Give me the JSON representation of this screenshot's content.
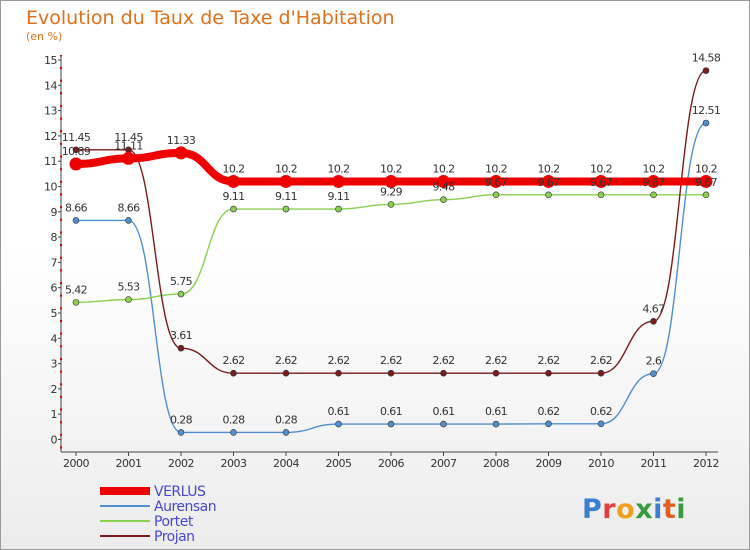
{
  "title": "Evolution du Taux de Taxe d'Habitation",
  "unit": "(en %)",
  "logo_text": "Proxiti",
  "chart_data": {
    "type": "line",
    "title": "Evolution du Taux de Taxe d'Habitation",
    "ylabel": "(en %)",
    "xlabel": "",
    "x": [
      "2000",
      "2001",
      "2002",
      "2003",
      "2004",
      "2005",
      "2006",
      "2007",
      "2008",
      "2009",
      "2010",
      "2011",
      "2012"
    ],
    "ylim": [
      0,
      15
    ],
    "yticks": [
      "0",
      "1",
      "2",
      "3",
      "4",
      "5",
      "6",
      "7",
      "8",
      "9",
      "10",
      "11",
      "12",
      "13",
      "14",
      "15"
    ],
    "grid": false,
    "legend_position": "bottom-left",
    "series": [
      {
        "name": "VERLUS",
        "color": "#ee0000",
        "values": [
          10.89,
          11.11,
          11.33,
          10.2,
          10.2,
          10.2,
          10.2,
          10.2,
          10.2,
          10.2,
          10.2,
          10.2,
          10.2
        ],
        "labels": [
          "10.89",
          "11.11",
          "11.33",
          "10.2",
          "10.2",
          "10.2",
          "10.2",
          "10.2",
          "10.2",
          "10.2",
          "10.2",
          "10.2",
          "10.2"
        ]
      },
      {
        "name": "Aurensan",
        "color": "#4f8fcf",
        "values": [
          8.66,
          8.66,
          0.28,
          0.28,
          0.28,
          0.61,
          0.61,
          0.61,
          0.61,
          0.62,
          0.62,
          2.6,
          12.51
        ],
        "labels": [
          "8.66",
          "8.66",
          "0.28",
          "0.28",
          "0.28",
          "0.61",
          "0.61",
          "0.61",
          "0.61",
          "0.62",
          "0.62",
          "2.6",
          "12.51"
        ]
      },
      {
        "name": "Portet",
        "color": "#88d050",
        "values": [
          5.42,
          5.53,
          5.75,
          9.11,
          9.11,
          9.11,
          9.29,
          9.48,
          9.67,
          9.67,
          9.67,
          9.67,
          9.67
        ],
        "labels": [
          "5.42",
          "5.53",
          "5.75",
          "9.11",
          "9.11",
          "9.11",
          "9.29",
          "9.48",
          "9.67",
          "9.67",
          "9.67",
          "9.67",
          "9.67"
        ]
      },
      {
        "name": "Projan",
        "color": "#7a1c1c",
        "values": [
          11.45,
          11.45,
          3.61,
          2.62,
          2.62,
          2.62,
          2.62,
          2.62,
          2.62,
          2.62,
          2.62,
          4.67,
          14.58
        ],
        "labels": [
          "11.45",
          "11.45",
          "3.61",
          "2.62",
          "2.62",
          "2.62",
          "2.62",
          "2.62",
          "2.62",
          "2.62",
          "2.62",
          "4.67",
          "14.58"
        ]
      }
    ]
  }
}
